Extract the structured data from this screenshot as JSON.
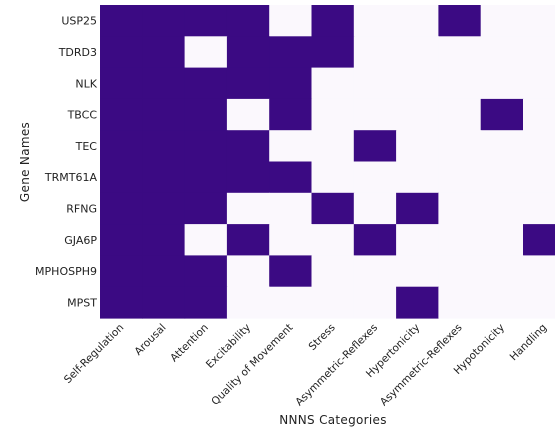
{
  "chart_data": {
    "type": "heatmap",
    "title": "",
    "xlabel": "NNNS Categories",
    "ylabel": "Gene Names",
    "rows": [
      "USP25",
      "TDRD3",
      "NLK",
      "TBCC",
      "TEC",
      "TRMT61A",
      "RFNG",
      "GJA6P",
      "MPHOSPH9",
      "MPST"
    ],
    "columns": [
      "Self-Regulation",
      "Arousal",
      "Attention",
      "Excitability",
      "Quality of Movement",
      "Stress",
      "Asymmetric-Reflexes",
      "Hypertonicity",
      "Asymmetric-Reflexes",
      "Hypotonicity",
      "Handling"
    ],
    "values": [
      [
        1,
        1,
        1,
        1,
        0,
        1,
        0,
        0,
        1,
        0,
        0
      ],
      [
        1,
        1,
        0,
        1,
        1,
        1,
        0,
        0,
        0,
        0,
        0
      ],
      [
        1,
        1,
        1,
        1,
        1,
        0,
        0,
        0,
        0,
        0,
        0
      ],
      [
        1,
        1,
        1,
        0,
        1,
        0,
        0,
        0,
        0,
        1,
        0
      ],
      [
        1,
        1,
        1,
        1,
        0,
        0,
        1,
        0,
        0,
        0,
        0
      ],
      [
        1,
        1,
        1,
        1,
        1,
        0,
        0,
        0,
        0,
        0,
        0
      ],
      [
        1,
        1,
        1,
        0,
        0,
        1,
        0,
        1,
        0,
        0,
        0
      ],
      [
        1,
        1,
        0,
        1,
        0,
        0,
        1,
        0,
        0,
        0,
        1
      ],
      [
        1,
        1,
        1,
        0,
        1,
        0,
        0,
        0,
        0,
        0,
        0
      ],
      [
        1,
        1,
        1,
        0,
        0,
        0,
        0,
        1,
        0,
        0,
        0
      ]
    ],
    "colors": {
      "on": "#3b0a83",
      "off": "#fbf8fd"
    },
    "grid": false,
    "legend": "none"
  }
}
